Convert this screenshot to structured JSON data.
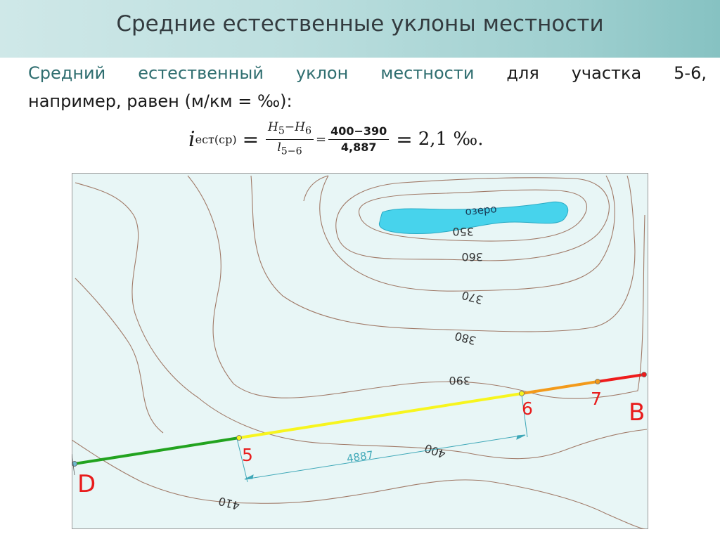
{
  "slide": {
    "title": "Средние естественные уклоны местности"
  },
  "paragraph": {
    "part_highlight": "Средний естественный уклон местности",
    "part_normal": "для участка 5-6,",
    "line2": "например, равен (м/км = ‰):"
  },
  "formula": {
    "symbol": "i",
    "subscript": "ест(ср)",
    "equals": "=",
    "frac1_num_a": "H",
    "frac1_num_a_sub": "5",
    "frac1_minus": "−",
    "frac1_num_b": "H",
    "frac1_num_b_sub": "6",
    "frac1_den": "l",
    "frac1_den_sub": "5−6",
    "small_equals": "=",
    "frac2_num": "400−390",
    "frac2_den": "4,887",
    "result": "2,1 ‰."
  },
  "map": {
    "lake_label": "озеро",
    "contours": [
      {
        "value": "350"
      },
      {
        "value": "360"
      },
      {
        "value": "370"
      },
      {
        "value": "380"
      },
      {
        "value": "390"
      },
      {
        "value": "400"
      },
      {
        "value": "410"
      }
    ],
    "points": {
      "p5": "5",
      "p6": "6",
      "p7": "7",
      "pD": "D",
      "pB": "B"
    },
    "distance_label": "4887",
    "colors": {
      "map_bg": "#e8f6f6",
      "lake": "#47d3ec",
      "contour": "#a07a68",
      "segment_D5": "#22a31f",
      "segment_56": "#f7f51e",
      "segment_67": "#f39a1a",
      "segment_7B": "#ee1c1c",
      "point_label": "#e81c1c",
      "dimension": "#3fa8b8"
    }
  }
}
